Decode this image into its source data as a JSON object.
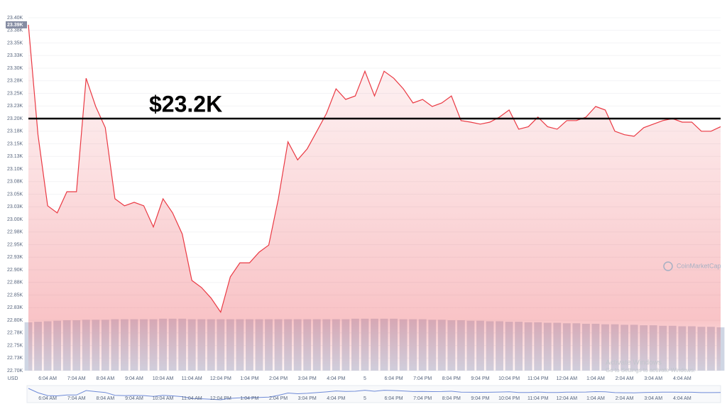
{
  "chart_data": {
    "type": "line",
    "price_marker": "23.39K",
    "axis_unit": "USD",
    "reference_line": {
      "value": 23200,
      "label": "$23.2K"
    },
    "watermark": "CoinMarketCap",
    "overlay_title": "Activate Windows",
    "overlay_text": "Go to Settings to activate Windows.",
    "grid": true,
    "categories": [
      null,
      null,
      "6:04 AM",
      null,
      null,
      "7:04 AM",
      null,
      null,
      "8:04 AM",
      null,
      null,
      "9:04 AM",
      null,
      null,
      "10:04 AM",
      null,
      null,
      "11:04 AM",
      null,
      null,
      "12:04 PM",
      null,
      null,
      "1:04 PM",
      null,
      null,
      "2:04 PM",
      null,
      null,
      "3:04 PM",
      null,
      null,
      "4:04 PM",
      null,
      null,
      "5",
      null,
      null,
      "6:04 PM",
      null,
      null,
      "7:04 PM",
      null,
      null,
      "8:04 PM",
      null,
      null,
      "9:04 PM",
      null,
      null,
      "10:04 PM",
      null,
      null,
      "11:04 PM",
      null,
      null,
      "12:04 AM",
      null,
      null,
      "1:04 AM",
      null,
      null,
      "2:04 AM",
      null,
      null,
      "3:04 AM",
      null,
      null,
      "4:04 AM",
      null,
      null,
      null,
      null
    ],
    "series": [
      {
        "color": "#ea3943",
        "values": [
          23386,
          23168,
          23027,
          23013,
          23055,
          23055,
          23280,
          23224,
          23182,
          23041,
          23027,
          23034,
          23027,
          22985,
          23041,
          23013,
          22971,
          22879,
          22865,
          22844,
          22816,
          22886,
          22914,
          22914,
          22935,
          22949,
          23041,
          23154,
          23118,
          23140,
          23175,
          23210,
          23259,
          23238,
          23245,
          23294,
          23245,
          23294,
          23280,
          23259,
          23231,
          23238,
          23224,
          23231,
          23245,
          23196,
          23193,
          23189,
          23193,
          23203,
          23217,
          23179,
          23184,
          23203,
          23184,
          23179,
          23196,
          23196,
          23203,
          23224,
          23217,
          23175,
          23168,
          23165,
          23182,
          23189,
          23196,
          23200,
          23193,
          23193,
          23175,
          23175,
          23184
        ]
      }
    ],
    "volume": {
      "color": "#cfd6e4",
      "values": [
        22796,
        22797,
        22798,
        22799,
        22800,
        22800,
        22801,
        22801,
        22801,
        22802,
        22802,
        22802,
        22802,
        22802,
        22803,
        22803,
        22803,
        22802,
        22802,
        22802,
        22802,
        22802,
        22802,
        22802,
        22802,
        22802,
        22802,
        22802,
        22802,
        22802,
        22802,
        22802,
        22802,
        22802,
        22803,
        22803,
        22803,
        22803,
        22803,
        22802,
        22802,
        22802,
        22801,
        22801,
        22800,
        22800,
        22799,
        22799,
        22798,
        22798,
        22797,
        22797,
        22796,
        22796,
        22795,
        22795,
        22794,
        22794,
        22793,
        22793,
        22792,
        22792,
        22791,
        22791,
        22790,
        22790,
        22789,
        22789,
        22788,
        22788,
        22787,
        22787,
        22786
      ]
    },
    "ylim": [
      22700,
      23400
    ],
    "yticks": [
      {
        "value": 23400,
        "label": "23.40K"
      },
      {
        "value": 23375,
        "label": "23.38K"
      },
      {
        "value": 23350,
        "label": "23.35K"
      },
      {
        "value": 23325,
        "label": "23.33K"
      },
      {
        "value": 23300,
        "label": "23.30K"
      },
      {
        "value": 23275,
        "label": "23.28K"
      },
      {
        "value": 23250,
        "label": "23.25K"
      },
      {
        "value": 23225,
        "label": "23.23K"
      },
      {
        "value": 23200,
        "label": "23.20K"
      },
      {
        "value": 23175,
        "label": "23.18K"
      },
      {
        "value": 23150,
        "label": "23.15K"
      },
      {
        "value": 23125,
        "label": "23.13K"
      },
      {
        "value": 23100,
        "label": "23.10K"
      },
      {
        "value": 23075,
        "label": "23.08K"
      },
      {
        "value": 23050,
        "label": "23.05K"
      },
      {
        "value": 23025,
        "label": "23.03K"
      },
      {
        "value": 23000,
        "label": "23.00K"
      },
      {
        "value": 22975,
        "label": "22.98K"
      },
      {
        "value": 22950,
        "label": "22.95K"
      },
      {
        "value": 22925,
        "label": "22.93K"
      },
      {
        "value": 22900,
        "label": "22.90K"
      },
      {
        "value": 22875,
        "label": "22.88K"
      },
      {
        "value": 22850,
        "label": "22.85K"
      },
      {
        "value": 22825,
        "label": "22.83K"
      },
      {
        "value": 22800,
        "label": "22.80K"
      },
      {
        "value": 22775,
        "label": "22.78K"
      },
      {
        "value": 22750,
        "label": "22.75K"
      },
      {
        "value": 22725,
        "label": "22.73K"
      },
      {
        "value": 22700,
        "label": "22.70K"
      }
    ]
  }
}
